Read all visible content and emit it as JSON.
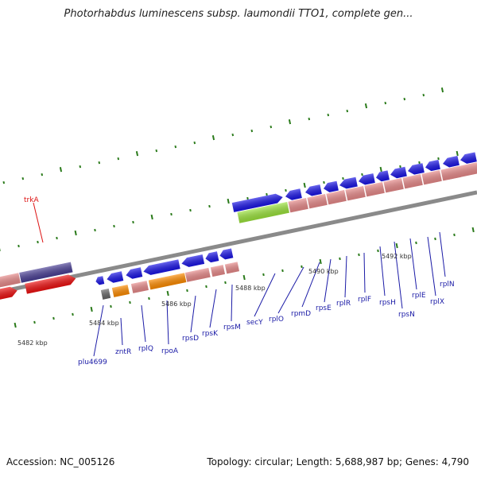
{
  "title": "Photorhabdus luminescens subsp. laumondii TTO1, complete gen...",
  "footer": {
    "accession": "Accession: NC_005126",
    "stats": "Topology: circular; Length: 5,688,987 bp; Genes: 4,790"
  },
  "colors": {
    "backbone": "#8a8a8a",
    "gene_blue": "#1a14e6",
    "cds_pink": "#e88a8a",
    "cds_red": "#ee1111",
    "cds_navy": "#4a3f95",
    "cds_orange": "#ff8c00",
    "cds_green": "#9be33c",
    "cds_gray": "#666666",
    "tick_green": "#2a7a1a",
    "label_blue": "#1a1aa6",
    "label_red": "#dd1111"
  },
  "kbp_labels": [
    "5482 kbp",
    "5484 kbp",
    "5486 kbp",
    "5488 kbp",
    "5490 kbp",
    "5492 kbp"
  ],
  "gene_labels": [
    {
      "id": "trkA",
      "text": "trkA",
      "color": "red"
    },
    {
      "id": "plu4699",
      "text": "plu4699"
    },
    {
      "id": "zntR",
      "text": "zntR"
    },
    {
      "id": "rplQ",
      "text": "rplQ"
    },
    {
      "id": "rpoA",
      "text": "rpoA"
    },
    {
      "id": "rpsD",
      "text": "rpsD"
    },
    {
      "id": "rpsK",
      "text": "rpsK"
    },
    {
      "id": "rpsM",
      "text": "rpsM"
    },
    {
      "id": "secY",
      "text": "secY"
    },
    {
      "id": "rplO",
      "text": "rplO"
    },
    {
      "id": "rpmD",
      "text": "rpmD"
    },
    {
      "id": "rpsE",
      "text": "rpsE"
    },
    {
      "id": "rplR",
      "text": "rplR"
    },
    {
      "id": "rplF",
      "text": "rplF"
    },
    {
      "id": "rpsH",
      "text": "rpsH"
    },
    {
      "id": "rpsN",
      "text": "rpsN"
    },
    {
      "id": "rplE",
      "text": "rplE"
    },
    {
      "id": "rplX",
      "text": "rplX"
    },
    {
      "id": "rplN",
      "text": "rplN"
    }
  ]
}
